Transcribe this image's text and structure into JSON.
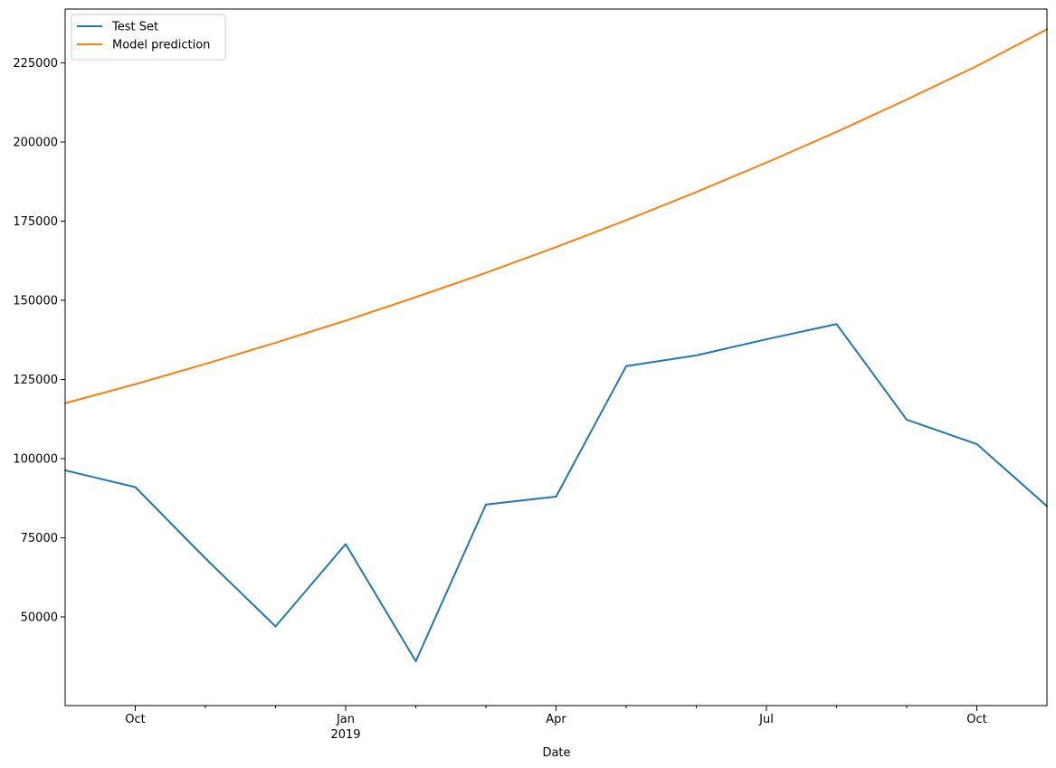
{
  "chart_data": {
    "type": "line",
    "title": "",
    "xlabel": "Date",
    "ylabel": "",
    "x": [
      "2018-09",
      "2018-10",
      "2018-11",
      "2018-12",
      "2019-01",
      "2019-02",
      "2019-03",
      "2019-04",
      "2019-05",
      "2019-06",
      "2019-07",
      "2019-08",
      "2019-09",
      "2019-10",
      "2019-11"
    ],
    "series": [
      {
        "name": "Test Set",
        "color": "#1f77b4",
        "values": [
          96300,
          91000,
          68500,
          47000,
          73000,
          36000,
          85500,
          88000,
          129200,
          132600,
          137700,
          142500,
          112300,
          104600,
          85000
        ]
      },
      {
        "name": "Model prediction",
        "color": "#ff7f0e",
        "values": [
          117500,
          123500,
          129900,
          136600,
          143600,
          151000,
          158700,
          166800,
          175300,
          184200,
          193500,
          203200,
          213400,
          224000,
          235600
        ]
      }
    ],
    "ylim": [
      22000,
      242000
    ],
    "yticks": [
      50000,
      75000,
      100000,
      125000,
      150000,
      175000,
      200000,
      225000
    ],
    "xticks_major": [
      {
        "x": "2018-10",
        "label": "Oct",
        "sublabel": ""
      },
      {
        "x": "2019-01",
        "label": "Jan",
        "sublabel": "2019"
      },
      {
        "x": "2019-04",
        "label": "Apr",
        "sublabel": ""
      },
      {
        "x": "2019-07",
        "label": "Jul",
        "sublabel": ""
      },
      {
        "x": "2019-10",
        "label": "Oct",
        "sublabel": ""
      }
    ],
    "xticks_minor": [
      "2018-11",
      "2018-12",
      "2019-02",
      "2019-03",
      "2019-05",
      "2019-06",
      "2019-08",
      "2019-09"
    ],
    "legend_position": "top-left",
    "grid": false
  }
}
